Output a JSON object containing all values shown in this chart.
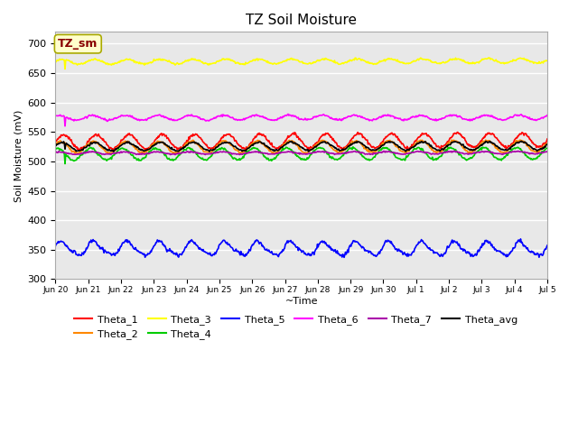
{
  "title": "TZ Soil Moisture",
  "xlabel": "~Time",
  "ylabel": "Soil Moisture (mV)",
  "ylim": [
    300,
    720
  ],
  "yticks": [
    300,
    350,
    400,
    450,
    500,
    550,
    600,
    650,
    700
  ],
  "bg_color": "#e8e8e8",
  "fig_color": "#ffffff",
  "legend_label": "TZ_sm",
  "series_order": [
    "Theta_1",
    "Theta_2",
    "Theta_3",
    "Theta_4",
    "Theta_5",
    "Theta_6",
    "Theta_7",
    "Theta_avg"
  ],
  "series": {
    "Theta_1": {
      "color": "#ff0000",
      "base": 533,
      "amplitude": 12,
      "trend": 0.22,
      "phase": 0.0,
      "spike_idx": null,
      "spike_val": null,
      "noise": 1.2
    },
    "Theta_2": {
      "color": "#ff8800",
      "base": 524,
      "amplitude": 10,
      "trend": 0.12,
      "phase": 0.6,
      "spike_idx": null,
      "spike_val": null,
      "noise": 1.0
    },
    "Theta_3": {
      "color": "#ffff00",
      "base": 669,
      "amplitude": 4,
      "trend": 0.12,
      "phase": 0.3,
      "spike_idx": 14,
      "spike_val": 657,
      "noise": 0.8
    },
    "Theta_4": {
      "color": "#00cc00",
      "base": 512,
      "amplitude": 10,
      "trend": 0.09,
      "phase": 1.2,
      "spike_idx": 14,
      "spike_val": 496,
      "noise": 1.0
    },
    "Theta_5": {
      "color": "#0000ff",
      "base": 352,
      "amplitude": 11,
      "trend": -0.05,
      "phase": 0.4,
      "spike_idx": null,
      "spike_val": null,
      "noise": 1.5
    },
    "Theta_6": {
      "color": "#ff00ff",
      "base": 574,
      "amplitude": 4,
      "trend": 0.05,
      "phase": 0.8,
      "spike_idx": 14,
      "spike_val": 560,
      "noise": 0.8
    },
    "Theta_7": {
      "color": "#aa00aa",
      "base": 514,
      "amplitude": 2,
      "trend": 0.06,
      "phase": 1.0,
      "spike_idx": null,
      "spike_val": null,
      "noise": 0.5
    },
    "Theta_avg": {
      "color": "#000000",
      "base": 525,
      "amplitude": 7,
      "trend": 0.1,
      "phase": 0.3,
      "spike_idx": 14,
      "spike_val": 521,
      "noise": 0.8
    }
  },
  "n_days": 15,
  "pts_per_day": 48,
  "xtick_labels": [
    "Jun 20",
    "Jun 21",
    "Jun 22",
    "Jun 23",
    "Jun 24",
    "Jun 25",
    "Jun 26",
    "Jun 27",
    "Jun 28",
    "Jun 29",
    "Jun 30",
    "Jul 1",
    "Jul 2",
    "Jul 3",
    "Jul 4",
    "Jul 5"
  ],
  "grid_color": "#ffffff",
  "annotation_box_color": "#ffffcc",
  "annotation_text_color": "#880000",
  "annotation_edge_color": "#aaaa00"
}
